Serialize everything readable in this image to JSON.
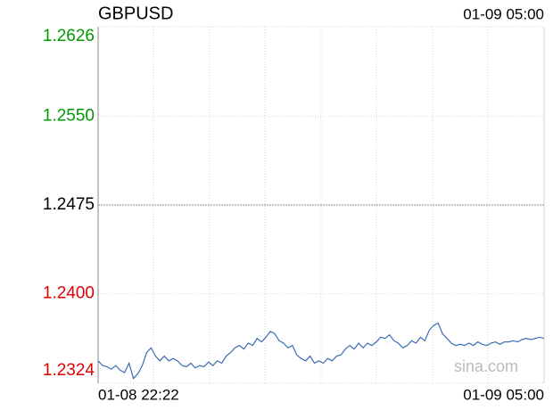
{
  "chart_data": {
    "type": "line",
    "title": "GBPUSD",
    "time": "01-09 05:00",
    "watermark": "sina.com",
    "categories": [
      "01-08 22:22",
      null,
      null,
      null,
      null,
      null,
      null,
      null,
      null,
      null,
      null,
      null,
      null,
      null,
      null,
      null,
      null,
      null,
      null,
      null,
      null,
      null,
      null,
      null,
      null,
      null,
      null,
      null,
      null,
      null,
      null,
      null,
      null,
      null,
      null,
      null,
      null,
      null,
      null,
      null,
      null,
      null,
      null,
      null,
      null,
      null,
      null,
      null,
      null,
      null,
      null,
      null,
      null,
      null,
      null,
      null,
      null,
      null,
      null,
      null,
      null,
      null,
      null,
      null,
      null,
      null,
      null,
      null,
      null,
      null,
      null,
      null,
      null,
      null,
      null,
      null,
      null,
      null,
      null,
      null,
      null,
      null,
      null,
      null,
      null,
      null,
      null,
      null,
      null,
      null,
      null,
      null,
      null,
      null,
      null,
      null,
      null,
      null,
      null,
      null,
      null,
      "01-09 05:00"
    ],
    "series": [
      {
        "name": "GBPUSD",
        "color": "#3d6db5",
        "values": [
          1.2343,
          1.2339,
          1.2338,
          1.2336,
          1.2339,
          1.2335,
          1.2333,
          1.2341,
          1.2328,
          1.2332,
          1.2339,
          1.235,
          1.2354,
          1.2347,
          1.2343,
          1.2347,
          1.2343,
          1.2345,
          1.2343,
          1.2339,
          1.2338,
          1.2341,
          1.2337,
          1.2339,
          1.2338,
          1.2342,
          1.2339,
          1.2343,
          1.2341,
          1.2347,
          1.235,
          1.2354,
          1.2356,
          1.2353,
          1.2358,
          1.2356,
          1.2362,
          1.2359,
          1.2363,
          1.2368,
          1.2366,
          1.236,
          1.2358,
          1.2354,
          1.2356,
          1.2348,
          1.2345,
          1.2343,
          1.2347,
          1.2341,
          1.2343,
          1.2341,
          1.2345,
          1.2343,
          1.2347,
          1.2348,
          1.2353,
          1.2356,
          1.2353,
          1.2358,
          1.2354,
          1.2358,
          1.2356,
          1.2359,
          1.2363,
          1.2362,
          1.2365,
          1.236,
          1.2358,
          1.2354,
          1.2356,
          1.236,
          1.2358,
          1.2363,
          1.236,
          1.2369,
          1.2373,
          1.2375,
          1.2366,
          1.2362,
          1.2358,
          1.2356,
          1.2357,
          1.2356,
          1.2358,
          1.2356,
          1.2359,
          1.2357,
          1.2356,
          1.2358,
          1.2359,
          1.2357,
          1.2359,
          1.2359,
          1.236,
          1.2359,
          1.2361,
          1.2362,
          1.2361,
          1.2362,
          1.2363,
          1.2362
        ]
      }
    ],
    "ylim": [
      1.2324,
      1.2626
    ],
    "yticks": [
      1.2324,
      {
        "value": 1.24,
        "label": "1.2400"
      },
      1.2475,
      {
        "value": 1.255,
        "label": "1.2550"
      },
      1.2626
    ],
    "up_color": "#009900",
    "down_color": "#e00000",
    "flat_color": "#000000",
    "grid": true
  }
}
